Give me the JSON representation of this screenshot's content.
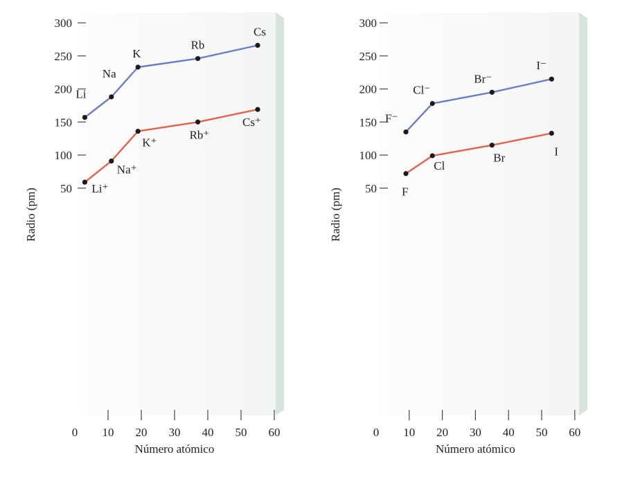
{
  "chart_data": [
    {
      "type": "line",
      "xlabel": "Número atómico",
      "ylabel": "Radio (pm)",
      "xlim": [
        0,
        60
      ],
      "ylim": [
        0,
        300
      ],
      "xticks": [
        "0",
        "10",
        "20",
        "30",
        "40",
        "50",
        "60"
      ],
      "yticks": [
        "50",
        "100",
        "150",
        "200",
        "250",
        "300"
      ],
      "series": [
        {
          "color": "#6a7ec4",
          "points": [
            {
              "x": 3,
              "y": 157,
              "label": "Li"
            },
            {
              "x": 11,
              "y": 188,
              "label": "Na"
            },
            {
              "x": 19,
              "y": 233,
              "label": "K"
            },
            {
              "x": 37,
              "y": 246,
              "label": "Rb"
            },
            {
              "x": 55,
              "y": 266,
              "label": "Cs"
            }
          ]
        },
        {
          "color": "#e5614c",
          "points": [
            {
              "x": 3,
              "y": 59,
              "label": "Li⁺"
            },
            {
              "x": 11,
              "y": 91,
              "label": "Na⁺"
            },
            {
              "x": 19,
              "y": 136,
              "label": "K⁺"
            },
            {
              "x": 37,
              "y": 150,
              "label": "Rb⁺"
            },
            {
              "x": 55,
              "y": 169,
              "label": "Cs⁺"
            }
          ]
        }
      ]
    },
    {
      "type": "line",
      "xlabel": "Número atómico",
      "ylabel": "Radio (pm)",
      "xlim": [
        0,
        60
      ],
      "ylim": [
        0,
        300
      ],
      "xticks": [
        "0",
        "10",
        "20",
        "30",
        "40",
        "50",
        "60"
      ],
      "yticks": [
        "50",
        "100",
        "150",
        "200",
        "250",
        "300"
      ],
      "series": [
        {
          "color": "#6a7ec4",
          "points": [
            {
              "x": 9,
              "y": 135,
              "label": "F⁻"
            },
            {
              "x": 17,
              "y": 178,
              "label": "Cl⁻"
            },
            {
              "x": 35,
              "y": 195,
              "label": "Br⁻"
            },
            {
              "x": 53,
              "y": 215,
              "label": "I⁻"
            }
          ]
        },
        {
          "color": "#e5614c",
          "points": [
            {
              "x": 9,
              "y": 72,
              "label": "F"
            },
            {
              "x": 17,
              "y": 99,
              "label": "Cl"
            },
            {
              "x": 35,
              "y": 115,
              "label": "Br"
            },
            {
              "x": 53,
              "y": 133,
              "label": "I"
            }
          ]
        }
      ]
    }
  ]
}
